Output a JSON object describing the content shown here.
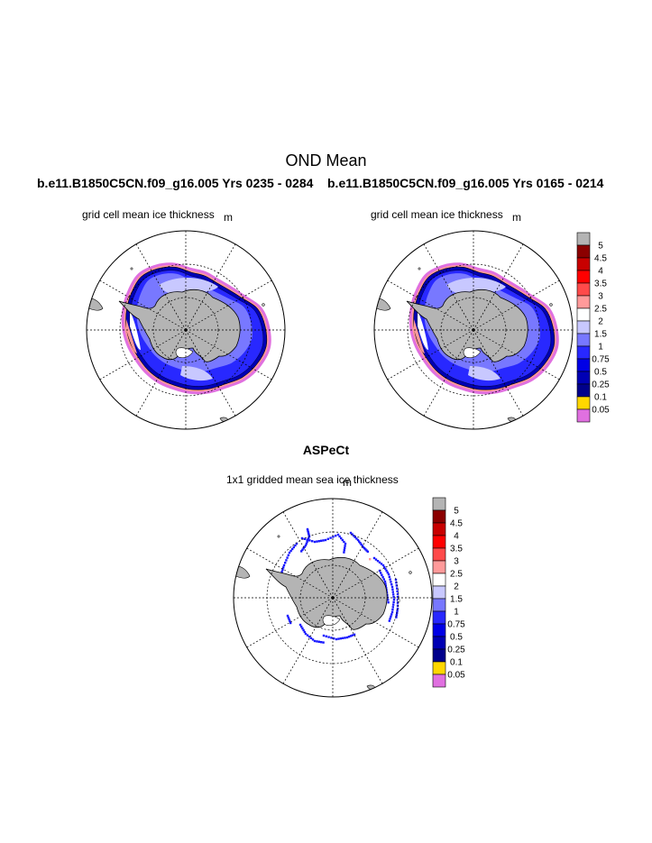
{
  "header": {
    "title": "OND Mean",
    "case_left": "b.e11.B1850C5CN.f09_g16.005  Yrs 0235 - 0284",
    "case_right": "b.e11.B1850C5CN.f09_g16.005  Yrs 0165 - 0214"
  },
  "maps": {
    "left": {
      "title": "grid cell mean ice thickness",
      "units": "m"
    },
    "right": {
      "title": "grid cell mean ice thickness",
      "units": "m"
    },
    "observed": {
      "section_title": "ASPeCt",
      "title": "1x1 gridded mean sea ice thickness",
      "units": "m"
    }
  },
  "colorbar": {
    "levels": [
      "5",
      "4.5",
      "4",
      "3.5",
      "3",
      "2.5",
      "2",
      "1.5",
      "1",
      "0.75",
      "0.5",
      "0.25",
      "0.1",
      "0.05"
    ],
    "colors": [
      "#b4b4b4",
      "#8b0000",
      "#c80000",
      "#ff0000",
      "#ff4a4a",
      "#ff9a9a",
      "#ffffff",
      "#c8c8ff",
      "#7878ff",
      "#2828ff",
      "#0000e6",
      "#0000b4",
      "#00008b",
      "#ffd700",
      "#e070e0"
    ]
  },
  "colors": {
    "land": "#b4b4b4",
    "ice_thin_edge": "#e070e0",
    "ice_edge_band": "#ff9a9a",
    "ice_main": "#2828ff",
    "ice_light": "#7878ff",
    "ice_pale": "#c8c8ff",
    "ice_dark": "#0000b4",
    "obs_points": "#1a1aff"
  }
}
